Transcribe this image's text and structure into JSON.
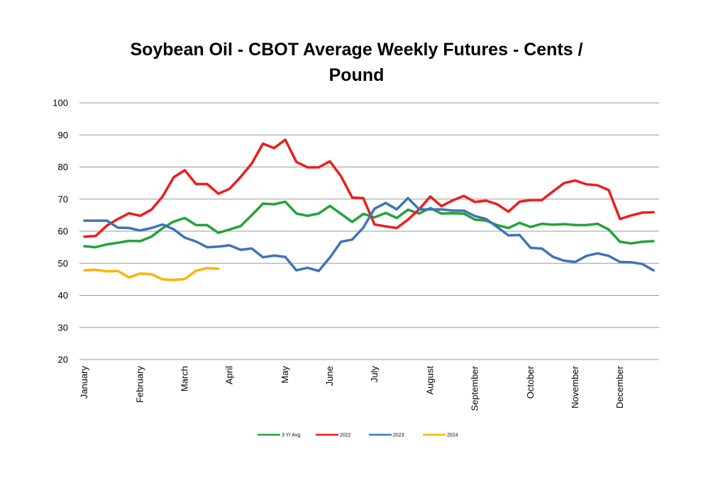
{
  "chart_data": {
    "type": "line",
    "title": "Soybean Oil - CBOT Average Weekly Futures - Cents / Pound",
    "xlabel": "",
    "ylabel": "",
    "ylim": [
      20,
      100
    ],
    "yticks": [
      20,
      30,
      40,
      50,
      60,
      70,
      80,
      90,
      100
    ],
    "grid": true,
    "legend_position": "bottom",
    "x_weeks": 52,
    "month_labels": [
      {
        "label": "January",
        "week": 1
      },
      {
        "label": "February",
        "week": 6
      },
      {
        "label": "March",
        "week": 10
      },
      {
        "label": "April",
        "week": 14
      },
      {
        "label": "May",
        "week": 19
      },
      {
        "label": "June",
        "week": 23
      },
      {
        "label": "July",
        "week": 27
      },
      {
        "label": "August",
        "week": 32
      },
      {
        "label": "September",
        "week": 36
      },
      {
        "label": "October",
        "week": 41
      },
      {
        "label": "November",
        "week": 45
      },
      {
        "label": "December",
        "week": 49
      }
    ],
    "series": [
      {
        "name": "3 Yr Avg",
        "color": "#22a33a",
        "values": [
          55.3,
          55.0,
          55.9,
          56.4,
          57.0,
          56.9,
          58.3,
          60.9,
          63.0,
          64.1,
          61.9,
          61.9,
          59.5,
          60.5,
          61.6,
          65.0,
          68.6,
          68.4,
          69.2,
          65.5,
          64.8,
          65.5,
          67.9,
          65.4,
          62.9,
          65.4,
          64.3,
          65.7,
          64.1,
          66.7,
          65.5,
          67.2,
          65.5,
          65.6,
          65.5,
          63.6,
          63.3,
          61.9,
          61.0,
          62.6,
          61.3,
          62.3,
          62.0,
          62.2,
          61.9,
          61.9,
          62.3,
          60.5,
          56.7,
          56.2,
          56.7,
          56.9
        ]
      },
      {
        "name": "2022",
        "color": "#ee1c1c",
        "values": [
          58.3,
          58.5,
          61.7,
          63.8,
          65.6,
          64.8,
          66.7,
          70.8,
          76.8,
          79.0,
          74.7,
          74.7,
          71.7,
          73.2,
          76.9,
          81.1,
          87.3,
          85.9,
          88.5,
          81.6,
          79.9,
          79.9,
          81.8,
          77.1,
          70.5,
          70.3,
          62.1,
          61.5,
          61.0,
          63.6,
          66.8,
          70.8,
          67.8,
          69.6,
          71.0,
          69.1,
          69.5,
          68.4,
          66.1,
          69.2,
          69.7,
          69.7,
          72.4,
          75.0,
          75.8,
          74.6,
          74.3,
          72.8,
          63.8,
          64.9,
          65.8,
          65.9
        ]
      },
      {
        "name": "2023",
        "color": "#3f73b8",
        "values": [
          63.3,
          63.3,
          63.3,
          61.1,
          61.0,
          60.2,
          61.0,
          62.1,
          60.6,
          58.0,
          56.8,
          55.0,
          55.2,
          55.6,
          54.2,
          54.6,
          51.9,
          52.4,
          52.0,
          47.8,
          48.6,
          47.6,
          51.8,
          56.7,
          57.4,
          61.1,
          67.0,
          68.8,
          66.8,
          70.3,
          66.8,
          66.8,
          66.8,
          66.4,
          66.4,
          64.7,
          63.8,
          61.3,
          58.7,
          58.8,
          54.8,
          54.6,
          52.0,
          50.8,
          50.4,
          52.3,
          53.1,
          52.3,
          50.4,
          50.3,
          49.8,
          47.8
        ]
      },
      {
        "name": "2024",
        "color": "#ffb400",
        "values": [
          47.8,
          48.0,
          47.5,
          47.6,
          45.6,
          46.8,
          46.6,
          45.0,
          44.8,
          45.1,
          47.7,
          48.5,
          48.3
        ]
      }
    ]
  }
}
